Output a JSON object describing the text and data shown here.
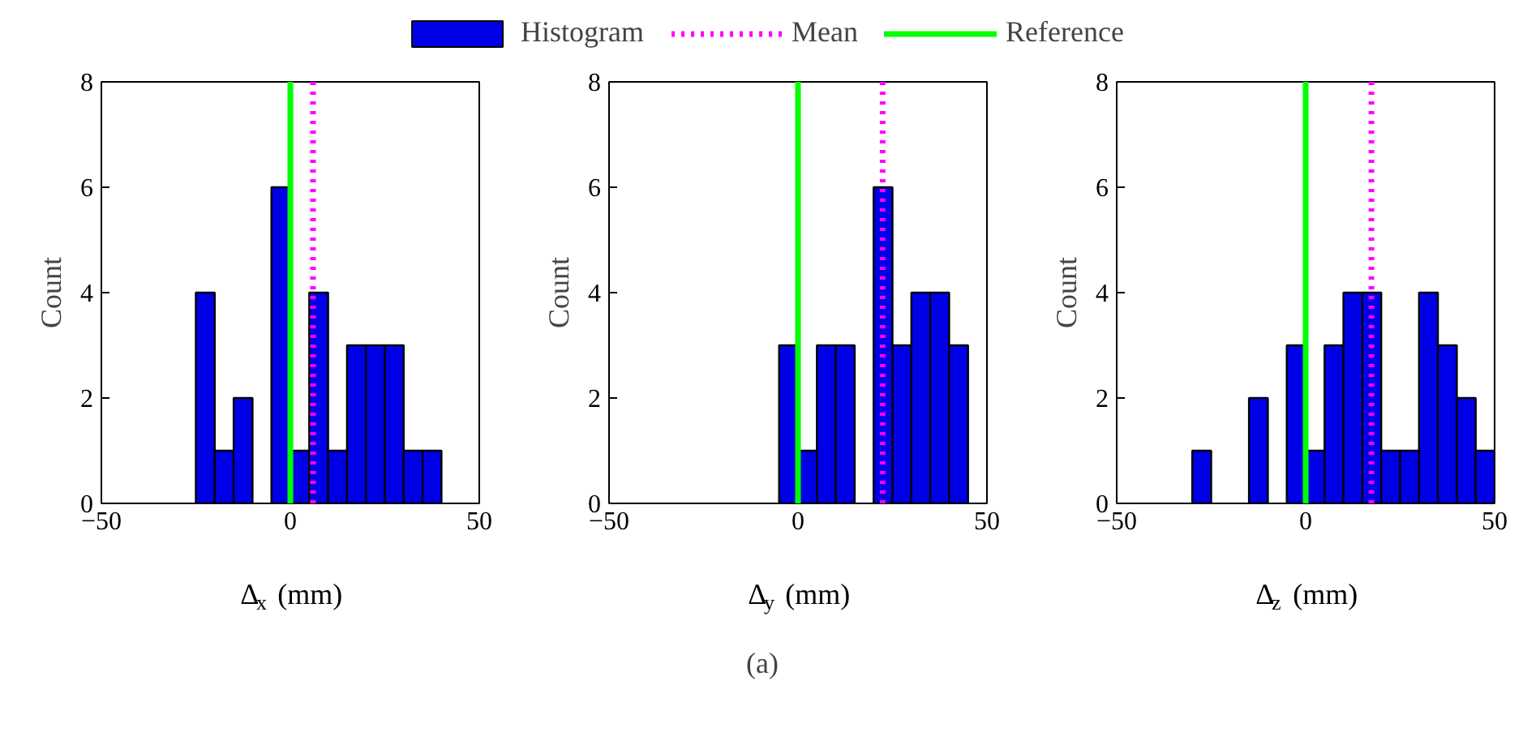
{
  "chart_data": [
    {
      "type": "histogram",
      "xlabel": "Δ$_{x}$ (mm)",
      "ylabel": "Count",
      "bins": [
        -25,
        -20,
        -15,
        -10,
        -5,
        0,
        5,
        10,
        15,
        20,
        25,
        30,
        35,
        40
      ],
      "series": [
        {
          "name": "Histogram",
          "color": "#0000e6",
          "values": [
            4,
            1,
            2,
            0,
            6,
            1,
            4,
            1,
            3,
            3,
            3,
            1,
            1
          ]
        }
      ],
      "xlim": [
        -50,
        50
      ],
      "ylim": [
        0,
        8
      ],
      "xticks": [
        -50,
        0,
        50
      ],
      "yticks": [
        0,
        2,
        4,
        6,
        8
      ],
      "grid": false,
      "legend": "top",
      "ref_lines": [
        {
          "axis": "x",
          "value": 6,
          "label": "Mean",
          "color": "#ff00ff",
          "line_style": "dotted"
        },
        {
          "axis": "x",
          "value": 0,
          "label": "Reference",
          "color": "#00ff00",
          "line_style": "solid"
        }
      ]
    },
    {
      "type": "histogram",
      "xlabel": "Δ$_{y}$ (mm)",
      "ylabel": "Count",
      "bins": [
        -5,
        0,
        5,
        10,
        15,
        20,
        25,
        30,
        35,
        40,
        45
      ],
      "series": [
        {
          "color": "#0000e6",
          "values": [
            3,
            1,
            3,
            3,
            0,
            6,
            3,
            4,
            4,
            3
          ]
        }
      ],
      "xlim": [
        -50,
        50
      ],
      "ylim": [
        0,
        8
      ],
      "xticks": [
        -50,
        0,
        50
      ],
      "yticks": [
        0,
        2,
        4,
        6,
        8
      ],
      "grid": false,
      "annotations": [
        "(a)"
      ],
      "ref_lines": [
        {
          "axis": "x",
          "value": 22.4,
          "color": "#ff00ff",
          "line_style": "dotted"
        },
        {
          "axis": "x",
          "value": 0,
          "color": "#00ff00",
          "line_style": "solid"
        }
      ]
    },
    {
      "type": "histogram",
      "xlabel": "Δ$_{z}$ (mm)",
      "ylabel": "Count",
      "bins": [
        -30,
        -25,
        -20,
        -15,
        -10,
        -5,
        0,
        5,
        10,
        15,
        20,
        25,
        30,
        35,
        40,
        45,
        50
      ],
      "series": [
        {
          "color": "#0000e6",
          "values": [
            1,
            0,
            0,
            2,
            0,
            3,
            1,
            3,
            4,
            4,
            1,
            1,
            4,
            3,
            2,
            1
          ]
        }
      ],
      "xlim": [
        -50,
        50
      ],
      "ylim": [
        0,
        8
      ],
      "xticks": [
        -50,
        0,
        50
      ],
      "yticks": [
        0,
        2,
        4,
        6,
        8
      ],
      "grid": false,
      "ref_lines": [
        {
          "axis": "x",
          "value": 17.4,
          "color": "#ff00ff",
          "line_style": "dotted"
        },
        {
          "axis": "x",
          "value": 0,
          "color": "#00ff00",
          "line_style": "solid"
        }
      ]
    }
  ]
}
